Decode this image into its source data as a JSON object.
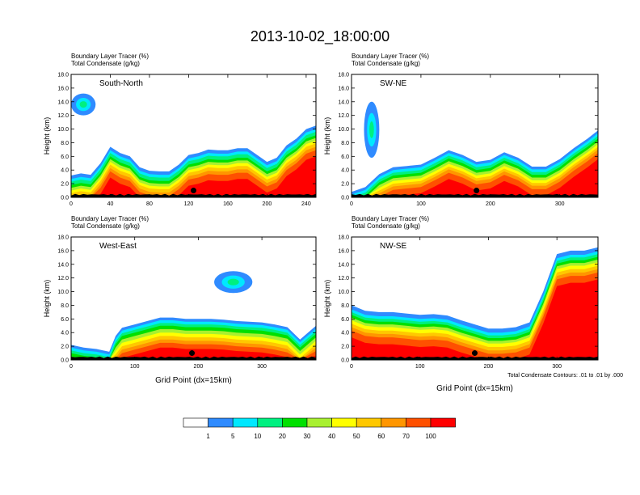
{
  "figure": {
    "title": "2013-10-02_18:00:00",
    "footnote": "Total Condensate Contours: .01 to .01 by .000"
  },
  "colorbar": {
    "colors": [
      "#ffffff",
      "#2f8bff",
      "#00e8ff",
      "#00f080",
      "#00e000",
      "#a8f030",
      "#ffff00",
      "#ffc800",
      "#ff9600",
      "#ff5000",
      "#ff0000"
    ],
    "labels": [
      "1",
      "5",
      "10",
      "20",
      "30",
      "40",
      "50",
      "60",
      "70",
      "100"
    ]
  },
  "chart_data": [
    {
      "type": "area",
      "title": "South-North",
      "subtitle_lines": [
        "Boundary Layer Tracer   (%)",
        "Total Condensate   (g/kg)"
      ],
      "ylabel": "Height (km)",
      "xlabel": "",
      "xlim": [
        0,
        250
      ],
      "ylim": [
        0,
        18
      ],
      "xticks": [
        0,
        40,
        80,
        120,
        160,
        200,
        240
      ],
      "yticks": [
        "0.0",
        "2.0",
        "4.0",
        "6.0",
        "8.0",
        "10.0",
        "12.0",
        "14.0",
        "16.0",
        "18.0"
      ],
      "marker": [
        125,
        1.0
      ],
      "x": [
        0,
        10,
        20,
        30,
        40,
        50,
        60,
        70,
        80,
        90,
        100,
        110,
        120,
        130,
        140,
        150,
        160,
        170,
        180,
        190,
        200,
        210,
        220,
        230,
        240,
        250
      ],
      "top": [
        3.2,
        3.5,
        3.3,
        5.0,
        7.4,
        6.5,
        6.0,
        4.4,
        3.9,
        3.8,
        3.8,
        4.8,
        6.2,
        6.5,
        7.0,
        6.9,
        6.9,
        7.2,
        7.2,
        6.2,
        5.2,
        5.8,
        7.6,
        8.6,
        10.0,
        10.5
      ],
      "band_depths": [
        0.5,
        0.4,
        0.5,
        0.4,
        0.4,
        0.4,
        0.5,
        0.5,
        0.9
      ],
      "upper_blobs": [
        {
          "x0": 0,
          "x1": 25,
          "y0": 12.0,
          "y1": 15.2
        }
      ]
    },
    {
      "type": "area",
      "title": "SW-NE",
      "subtitle_lines": [
        "Boundary Layer Tracer   (%)",
        "Total Condensate   (g/kg)"
      ],
      "ylabel": "Height (km)",
      "xlabel": "",
      "xlim": [
        0,
        355
      ],
      "ylim": [
        0,
        18
      ],
      "xticks": [
        0,
        100,
        200,
        300
      ],
      "yticks": [
        "0.0",
        "2.0",
        "4.0",
        "6.0",
        "8.0",
        "10.0",
        "12.0",
        "14.0",
        "16.0",
        "18.0"
      ],
      "marker": [
        180,
        1.0
      ],
      "x": [
        0,
        20,
        40,
        60,
        80,
        100,
        120,
        140,
        160,
        180,
        200,
        220,
        240,
        260,
        280,
        300,
        320,
        340,
        355
      ],
      "top": [
        0.8,
        1.5,
        3.4,
        4.4,
        4.6,
        4.8,
        5.8,
        6.9,
        6.2,
        5.2,
        5.5,
        6.6,
        5.8,
        4.5,
        4.5,
        5.6,
        7.2,
        8.6,
        9.8
      ],
      "band_depths": [
        0.4,
        0.4,
        0.4,
        0.4,
        0.4,
        0.4,
        0.4,
        0.5,
        0.9
      ],
      "upper_blobs": [
        {
          "x0": 18,
          "x1": 40,
          "y0": 5.8,
          "y1": 14.0
        }
      ]
    },
    {
      "type": "area",
      "title": "West-East",
      "subtitle_lines": [
        "Boundary Layer Tracer   (%)",
        "Total Condensate   (g/kg)"
      ],
      "ylabel": "Height (km)",
      "xlabel": "Grid Point (dx=15km)",
      "xlim": [
        0,
        385
      ],
      "ylim": [
        0,
        18
      ],
      "xticks": [
        0,
        100,
        200,
        300
      ],
      "yticks": [
        "0.0",
        "2.0",
        "4.0",
        "6.0",
        "8.0",
        "10.0",
        "12.0",
        "14.0",
        "16.0",
        "18.0"
      ],
      "marker": [
        190,
        1.0
      ],
      "x": [
        0,
        20,
        40,
        60,
        70,
        80,
        100,
        120,
        140,
        160,
        180,
        200,
        220,
        240,
        260,
        280,
        300,
        320,
        340,
        360,
        385
      ],
      "top": [
        2.2,
        1.8,
        1.6,
        1.2,
        3.5,
        4.7,
        5.2,
        5.7,
        6.2,
        6.2,
        6.0,
        6.0,
        6.0,
        5.9,
        5.7,
        5.6,
        5.5,
        5.2,
        4.8,
        3.0,
        5.0
      ],
      "band_depths": [
        0.4,
        0.4,
        0.4,
        0.5,
        0.5,
        0.5,
        0.5,
        0.5,
        0.7
      ],
      "upper_blobs": [
        {
          "x0": 225,
          "x1": 285,
          "y0": 9.8,
          "y1": 13.0
        }
      ]
    },
    {
      "type": "area",
      "title": "NW-SE",
      "subtitle_lines": [
        "Boundary Layer Tracer   (%)",
        "Total Condensate   (g/kg)"
      ],
      "ylabel": "Height (km)",
      "xlabel": "Grid Point (dx=15km)",
      "xlim": [
        0,
        360
      ],
      "ylim": [
        0,
        18
      ],
      "xticks": [
        0,
        100,
        200,
        300
      ],
      "yticks": [
        "0.0",
        "2.0",
        "4.0",
        "6.0",
        "8.0",
        "10.0",
        "12.0",
        "14.0",
        "16.0",
        "18.0"
      ],
      "marker": [
        180,
        1.0
      ],
      "x": [
        0,
        20,
        40,
        60,
        80,
        100,
        120,
        140,
        160,
        180,
        200,
        220,
        240,
        260,
        280,
        300,
        320,
        340,
        360
      ],
      "top": [
        8.0,
        7.2,
        7.0,
        7.0,
        6.8,
        6.6,
        6.7,
        6.5,
        5.8,
        5.2,
        4.6,
        4.6,
        4.8,
        5.5,
        10.0,
        15.5,
        16.0,
        16.0,
        16.5
      ],
      "band_depths": [
        0.6,
        0.4,
        0.4,
        0.4,
        0.4,
        0.5,
        0.5,
        0.5,
        1.0
      ],
      "upper_blobs": []
    }
  ]
}
